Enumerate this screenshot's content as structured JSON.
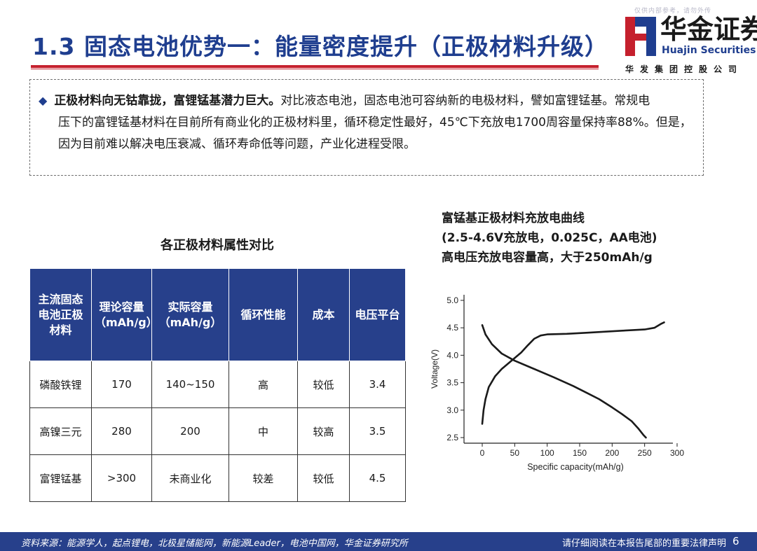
{
  "watermark": "仅供内部参考，请勿外传",
  "header": {
    "title": "1.3 固态电池优势一：能量密度提升（正极材料升级）"
  },
  "logo": {
    "cn": "华金证券",
    "en": "Huajin Securities",
    "sub": "华发集团控股公司"
  },
  "summary": {
    "lead": "正极材料向无钴靠拢，富锂锰基潜力巨大。",
    "line1": "对比液态电池，固态电池可容纳新的电极材料，譬如富锂锰基。常规电",
    "line2": "压下的富锂锰基材料在目前所有商业化的正极材料里，循环稳定性最好，45℃下充放电1700周容量保持率88%。但是，",
    "line3": "因为目前难以解决电压衰减、循环寿命低等问题，产业化进程受限。"
  },
  "table": {
    "title": "各正极材料属性对比",
    "headers": [
      "主流固态电池正极材料",
      "理论容量（mAh/g）",
      "实际容量（mAh/g）",
      "循环性能",
      "成本",
      "电压平台"
    ],
    "rows": [
      [
        "磷酸铁锂",
        "170",
        "140~150",
        "高",
        "较低",
        "3.4"
      ],
      [
        "高镍三元",
        "280",
        "200",
        "中",
        "较高",
        "3.5"
      ],
      [
        "富锂锰基",
        ">300",
        "未商业化",
        "较差",
        "较低",
        "4.5"
      ]
    ]
  },
  "chart_caption": {
    "line1": "富锰基正极材料充放电曲线",
    "line2": "(2.5-4.6V充放电，0.025C，AA电池)",
    "line3": "高电压充放电容量高，大于250mAh/g"
  },
  "chart_data": {
    "type": "line",
    "title": "",
    "xlabel": "Specific capacity(mAh/g)",
    "ylabel": "Voltage(V)",
    "xlim": [
      0,
      300
    ],
    "ylim": [
      2.5,
      5.0
    ],
    "x_ticks": [
      "0",
      "50",
      "100",
      "150",
      "200",
      "250",
      "300"
    ],
    "y_ticks": [
      "2.5",
      "3.0",
      "3.5",
      "4.0",
      "4.5",
      "5.0"
    ],
    "grid": false,
    "series": [
      {
        "points": [
          [
            0,
            2.75
          ],
          [
            2,
            3.0
          ],
          [
            5,
            3.2
          ],
          [
            10,
            3.42
          ],
          [
            20,
            3.62
          ],
          [
            30,
            3.75
          ],
          [
            45,
            3.9
          ],
          [
            60,
            4.05
          ],
          [
            70,
            4.18
          ],
          [
            80,
            4.3
          ],
          [
            90,
            4.36
          ],
          [
            100,
            4.38
          ],
          [
            130,
            4.39
          ],
          [
            160,
            4.41
          ],
          [
            190,
            4.43
          ],
          [
            220,
            4.45
          ],
          [
            250,
            4.47
          ],
          [
            265,
            4.5
          ],
          [
            275,
            4.57
          ],
          [
            280,
            4.6
          ]
        ]
      },
      {
        "points": [
          [
            0,
            4.55
          ],
          [
            5,
            4.38
          ],
          [
            15,
            4.2
          ],
          [
            30,
            4.03
          ],
          [
            50,
            3.9
          ],
          [
            80,
            3.75
          ],
          [
            110,
            3.6
          ],
          [
            140,
            3.44
          ],
          [
            160,
            3.32
          ],
          [
            180,
            3.2
          ],
          [
            200,
            3.05
          ],
          [
            215,
            2.93
          ],
          [
            230,
            2.8
          ],
          [
            240,
            2.67
          ],
          [
            248,
            2.55
          ],
          [
            252,
            2.5
          ]
        ]
      }
    ]
  },
  "footer": {
    "source": "资料来源：能源学人，起点锂电，北极星储能网，新能源Leader，电池中国网，华金证券研究所",
    "legal": "请仔细阅读在本报告尾部的重要法律声明",
    "page": "6"
  }
}
